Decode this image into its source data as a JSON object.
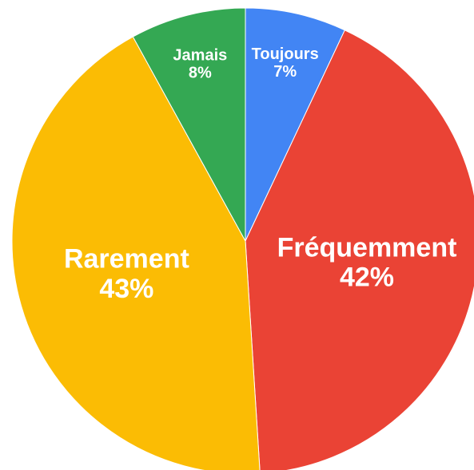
{
  "chart_data": {
    "type": "pie",
    "categories": [
      "Toujours",
      "Fréquemment",
      "Rarement",
      "Jamais"
    ],
    "values": [
      7,
      42,
      43,
      8
    ],
    "value_labels": [
      "7%",
      "42%",
      "43%",
      "8%"
    ],
    "colors": [
      "#4285f4",
      "#ea4335",
      "#fbbc04",
      "#34a853"
    ]
  }
}
